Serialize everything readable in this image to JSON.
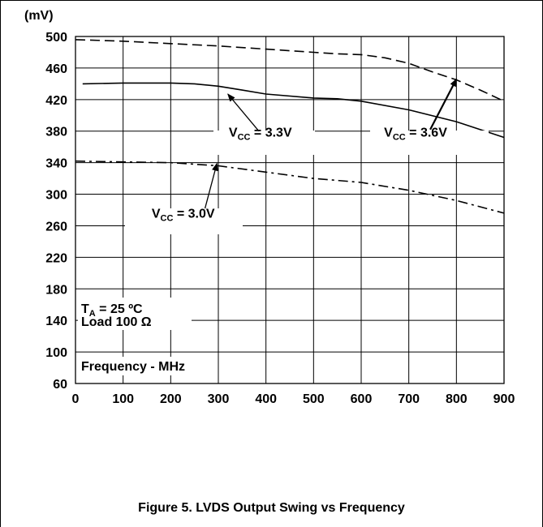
{
  "chart_data": {
    "type": "line",
    "title": "",
    "xlabel": "Frequency - MHz",
    "ylabel": "(mV)",
    "xlim": [
      0,
      900
    ],
    "ylim": [
      60,
      500
    ],
    "xticks": [
      0,
      100,
      200,
      300,
      400,
      500,
      600,
      700,
      800,
      900
    ],
    "yticks": [
      60,
      100,
      140,
      180,
      220,
      260,
      300,
      340,
      380,
      420,
      460,
      500
    ],
    "grid": true,
    "series": [
      {
        "name": "VCC = 3.6V",
        "style": "dashed",
        "x": [
          0,
          100,
          200,
          300,
          400,
          500,
          550,
          600,
          650,
          700,
          750,
          800,
          850,
          900
        ],
        "y": [
          496,
          494,
          491,
          488,
          484,
          480,
          478,
          477,
          473,
          466,
          455,
          445,
          432,
          418
        ]
      },
      {
        "name": "VCC = 3.3V",
        "style": "solid",
        "x": [
          15,
          100,
          200,
          250,
          300,
          350,
          400,
          500,
          550,
          600,
          700,
          800,
          900
        ],
        "y": [
          440,
          441,
          441,
          440,
          437,
          432,
          427,
          422,
          421,
          418,
          407,
          392,
          372
        ]
      },
      {
        "name": "VCC = 3.0V",
        "style": "dashdot",
        "x": [
          0,
          100,
          200,
          300,
          400,
          500,
          600,
          700,
          800,
          900
        ],
        "y": [
          342,
          341,
          340,
          336,
          328,
          320,
          315,
          305,
          292,
          276
        ]
      }
    ],
    "annotations": {
      "v33": {
        "main": "V",
        "sub": "CC",
        "rest": " = 3.3V",
        "text_at": [
          322,
          373
        ],
        "arrow_from": [
          385,
          380
        ],
        "arrow_to": [
          320,
          427
        ]
      },
      "v36": {
        "main": "V",
        "sub": "CC",
        "rest": " = 3.6V",
        "text_at": [
          648,
          373
        ],
        "arrow_from": [
          745,
          382
        ],
        "arrow_to": [
          800,
          446
        ]
      },
      "v30": {
        "main": "V",
        "sub": "CC",
        "rest": " = 3.0V",
        "text_at": [
          160,
          270
        ],
        "arrow_from": [
          272,
          282
        ],
        "arrow_to": [
          297,
          339
        ]
      },
      "ta": {
        "main": "T",
        "sub": "A",
        "rest": " = 25 ºC"
      },
      "load": "Load 100 Ω"
    },
    "caption": "Figure 5. LVDS Output Swing vs Frequency"
  }
}
